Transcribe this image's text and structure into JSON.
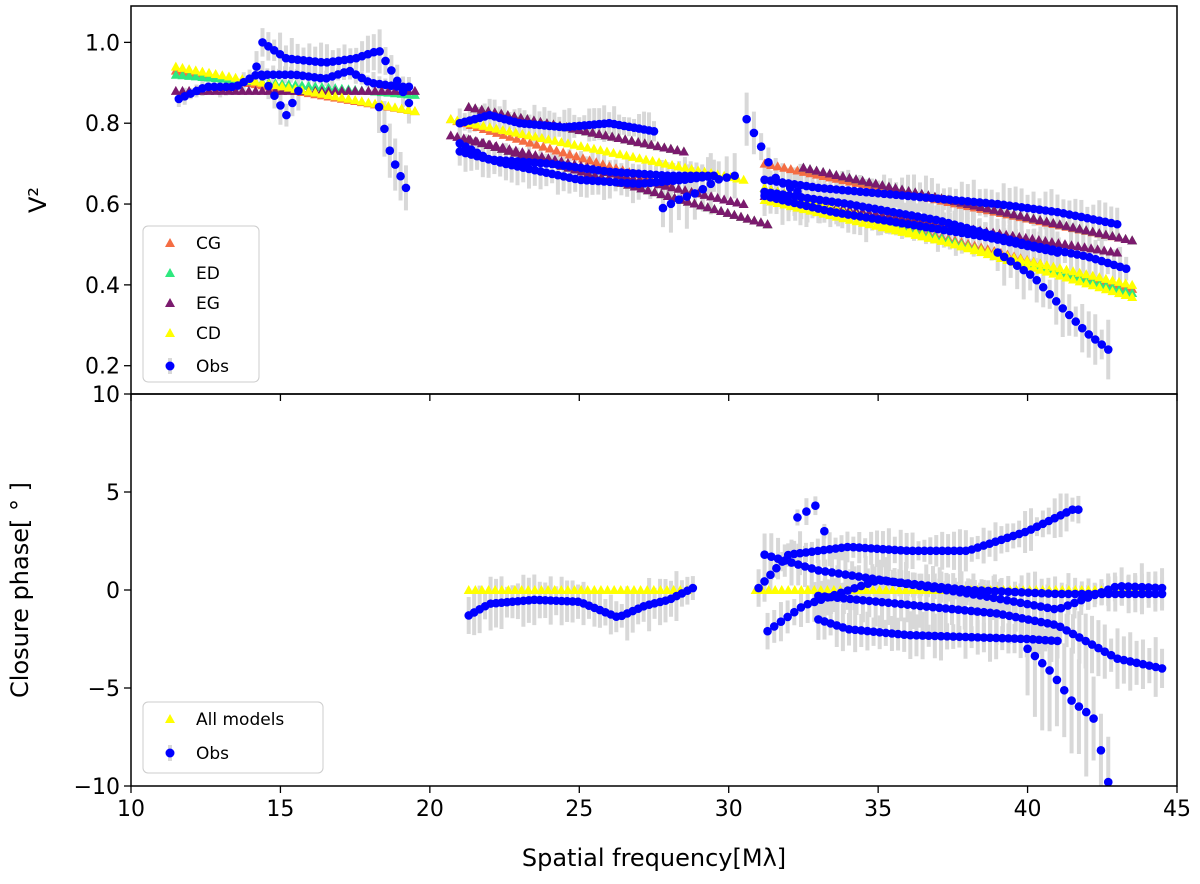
{
  "chart_data": [
    {
      "type": "scatter",
      "panel": "top",
      "xlabel": "",
      "ylabel": "V²",
      "xlim": [
        10,
        45
      ],
      "ylim": [
        0.13,
        1.09
      ],
      "yticks": [
        0.2,
        0.4,
        0.6,
        0.8,
        1.0
      ],
      "ytick_labels": [
        "0.2",
        "0.4",
        "0.6",
        "0.8",
        "1.0"
      ],
      "legend": {
        "placement": "lower-left",
        "entries": [
          "CG",
          "ED",
          "EG",
          "CD",
          "Obs"
        ]
      },
      "model_series": [
        {
          "name": "CG",
          "color": "#f46d43",
          "marker": "triangle",
          "segments": [
            [
              11.5,
              0.93,
              19.5,
              0.83
            ],
            [
              21.3,
              0.84,
              28.5,
              0.73
            ],
            [
              21.3,
              0.76,
              31.3,
              0.55
            ],
            [
              31.2,
              0.7,
              43.5,
              0.51
            ],
            [
              31.2,
              0.64,
              43.5,
              0.39
            ],
            [
              20.7,
              0.81,
              28.0,
              0.65
            ]
          ]
        },
        {
          "name": "ED",
          "color": "#2ee87f",
          "marker": "triangle",
          "segments": [
            [
              11.5,
              0.92,
              19.5,
              0.87
            ],
            [
              21.3,
              0.84,
              28.5,
              0.73
            ],
            [
              21.3,
              0.76,
              31.3,
              0.55
            ],
            [
              32.5,
              0.69,
              43.5,
              0.51
            ],
            [
              31.2,
              0.64,
              43.5,
              0.38
            ]
          ]
        },
        {
          "name": "EG",
          "color": "#7b1a6e",
          "marker": "triangle",
          "segments": [
            [
              11.5,
              0.88,
              19.5,
              0.88
            ],
            [
              21.3,
              0.84,
              28.5,
              0.73
            ],
            [
              21.3,
              0.76,
              31.3,
              0.55
            ],
            [
              32.5,
              0.69,
              43.5,
              0.51
            ],
            [
              31.2,
              0.62,
              43.0,
              0.48
            ],
            [
              20.7,
              0.77,
              30.5,
              0.6
            ]
          ]
        },
        {
          "name": "CD",
          "color": "#ffff00",
          "marker": "triangle",
          "segments": [
            [
              11.5,
              0.94,
              19.5,
              0.83
            ],
            [
              20.7,
              0.81,
              30.5,
              0.66
            ],
            [
              31.2,
              0.64,
              43.5,
              0.37
            ],
            [
              31.2,
              0.61,
              43.5,
              0.4
            ]
          ]
        }
      ],
      "obs": {
        "name": "Obs",
        "color": "#0000ff",
        "errcolor": "#d8d8d8",
        "curves": [
          {
            "x0": 11.6,
            "x1": 19.3,
            "n": 40,
            "kp": [
              [
                11.6,
                0.86
              ],
              [
                12.5,
                0.89
              ],
              [
                13.5,
                0.89
              ],
              [
                14.2,
                0.92
              ],
              [
                15.5,
                0.92
              ],
              [
                16.5,
                0.91
              ],
              [
                17.3,
                0.93
              ],
              [
                18.0,
                0.9
              ],
              [
                19.0,
                0.89
              ]
            ],
            "err": 0.02
          },
          {
            "x0": 14.4,
            "x1": 19.3,
            "n": 26,
            "kp": [
              [
                14.4,
                1.0
              ],
              [
                15.2,
                0.96
              ],
              [
                16.5,
                0.95
              ],
              [
                17.5,
                0.96
              ],
              [
                18.3,
                0.98
              ],
              [
                18.8,
                0.92
              ],
              [
                19.3,
                0.85
              ]
            ],
            "err": 0.04
          },
          {
            "x0": 14.2,
            "x1": 15.6,
            "n": 8,
            "kp": [
              [
                14.2,
                0.94
              ],
              [
                14.7,
                0.88
              ],
              [
                15.2,
                0.82
              ],
              [
                15.6,
                0.88
              ]
            ],
            "err": 0.04
          },
          {
            "x0": 18.3,
            "x1": 19.2,
            "n": 6,
            "kp": [
              [
                18.3,
                0.84
              ],
              [
                18.7,
                0.72
              ],
              [
                19.2,
                0.64
              ]
            ],
            "err": 0.05
          },
          {
            "x0": 21.0,
            "x1": 27.5,
            "n": 40,
            "kp": [
              [
                21.0,
                0.8
              ],
              [
                22.0,
                0.82
              ],
              [
                23.0,
                0.8
              ],
              [
                24.5,
                0.79
              ],
              [
                26.0,
                0.8
              ],
              [
                27.5,
                0.78
              ]
            ],
            "err": 0.035
          },
          {
            "x0": 21.0,
            "x1": 29.5,
            "n": 45,
            "kp": [
              [
                21.0,
                0.75
              ],
              [
                22.0,
                0.71
              ],
              [
                24.0,
                0.7
              ],
              [
                26.0,
                0.68
              ],
              [
                28.0,
                0.67
              ],
              [
                29.5,
                0.67
              ]
            ],
            "err": 0.035
          },
          {
            "x0": 21.0,
            "x1": 29.5,
            "n": 45,
            "kp": [
              [
                21.0,
                0.73
              ],
              [
                22.5,
                0.7
              ],
              [
                25.0,
                0.66
              ],
              [
                27.0,
                0.65
              ],
              [
                28.5,
                0.66
              ],
              [
                29.5,
                0.67
              ]
            ],
            "err": 0.035
          },
          {
            "x0": 27.8,
            "x1": 30.2,
            "n": 10,
            "kp": [
              [
                27.8,
                0.59
              ],
              [
                28.3,
                0.61
              ],
              [
                29.0,
                0.63
              ],
              [
                29.6,
                0.66
              ],
              [
                30.2,
                0.67
              ]
            ],
            "err": 0.06
          },
          {
            "x0": 30.6,
            "x1": 32.3,
            "n": 8,
            "kp": [
              [
                30.6,
                0.81
              ],
              [
                31.1,
                0.74
              ],
              [
                31.6,
                0.66
              ],
              [
                32.3,
                0.63
              ]
            ],
            "err": 0.05
          },
          {
            "x0": 31.2,
            "x1": 43.0,
            "n": 60,
            "kp": [
              [
                31.2,
                0.66
              ],
              [
                33.0,
                0.64
              ],
              [
                36.0,
                0.62
              ],
              [
                39.0,
                0.6
              ],
              [
                41.0,
                0.58
              ],
              [
                43.0,
                0.55
              ]
            ],
            "err": 0.04
          },
          {
            "x0": 31.2,
            "x1": 43.3,
            "n": 60,
            "kp": [
              [
                31.2,
                0.63
              ],
              [
                34.0,
                0.6
              ],
              [
                37.0,
                0.56
              ],
              [
                40.0,
                0.5
              ],
              [
                42.0,
                0.47
              ],
              [
                43.3,
                0.44
              ]
            ],
            "err": 0.045
          },
          {
            "x0": 31.2,
            "x1": 41.0,
            "n": 50,
            "kp": [
              [
                31.2,
                0.62
              ],
              [
                33.5,
                0.58
              ],
              [
                36.0,
                0.55
              ],
              [
                38.5,
                0.52
              ],
              [
                41.0,
                0.48
              ]
            ],
            "err": 0.045
          },
          {
            "x0": 39.0,
            "x1": 42.7,
            "n": 18,
            "kp": [
              [
                39.0,
                0.48
              ],
              [
                40.2,
                0.42
              ],
              [
                41.2,
                0.34
              ],
              [
                42.0,
                0.28
              ],
              [
                42.7,
                0.24
              ]
            ],
            "err": 0.06
          }
        ]
      }
    },
    {
      "type": "scatter",
      "panel": "bottom",
      "xlabel": "Spatial frequency[Mλ]",
      "ylabel": "Closure phase[ ° ]",
      "xlim": [
        10,
        45
      ],
      "ylim": [
        -10,
        10
      ],
      "xticks": [
        10,
        15,
        20,
        25,
        30,
        35,
        40,
        45
      ],
      "xtick_labels": [
        "10",
        "15",
        "20",
        "25",
        "30",
        "35",
        "40",
        "45"
      ],
      "yticks": [
        -10,
        -5,
        0,
        5,
        10
      ],
      "ytick_labels": [
        "−10",
        "−5",
        "0",
        "5",
        "10"
      ],
      "legend": {
        "placement": "lower-left",
        "entries": [
          "All models",
          "Obs"
        ]
      },
      "model_series": [
        {
          "name": "All models",
          "color": "#ffff00",
          "marker": "triangle",
          "segments": [
            [
              21.3,
              0,
              28.6,
              0
            ],
            [
              30.9,
              0,
              44.0,
              0
            ]
          ]
        }
      ],
      "obs": {
        "name": "Obs",
        "color": "#0000ff",
        "errcolor": "#d8d8d8",
        "curves": [
          {
            "x0": 21.3,
            "x1": 28.8,
            "n": 42,
            "kp": [
              [
                21.3,
                -1.3
              ],
              [
                22.0,
                -0.7
              ],
              [
                23.5,
                -0.5
              ],
              [
                25.0,
                -0.6
              ],
              [
                26.3,
                -1.4
              ],
              [
                27.2,
                -0.8
              ],
              [
                28.0,
                -0.5
              ],
              [
                28.8,
                0.1
              ]
            ],
            "err": 1.0
          },
          {
            "x0": 31.0,
            "x1": 41.7,
            "n": 55,
            "kp": [
              [
                31.0,
                0.1
              ],
              [
                32.0,
                1.8
              ],
              [
                34.0,
                2.2
              ],
              [
                36.0,
                2.0
              ],
              [
                38.0,
                2.0
              ],
              [
                40.0,
                3.0
              ],
              [
                41.5,
                4.1
              ]
            ],
            "err": 0.8
          },
          {
            "x0": 31.3,
            "x1": 44.5,
            "n": 60,
            "kp": [
              [
                31.3,
                -2.1
              ],
              [
                32.5,
                -0.8
              ],
              [
                35.0,
                0.5
              ],
              [
                38.0,
                0.0
              ],
              [
                41.0,
                -0.2
              ],
              [
                44.5,
                -0.2
              ]
            ],
            "err": 0.8
          },
          {
            "x0": 31.2,
            "x1": 44.5,
            "n": 60,
            "kp": [
              [
                31.2,
                1.8
              ],
              [
                33.0,
                1.0
              ],
              [
                36.0,
                0.3
              ],
              [
                38.5,
                -0.3
              ],
              [
                41.0,
                -1.0
              ],
              [
                43.0,
                0.2
              ],
              [
                44.5,
                0.1
              ]
            ],
            "err": 0.9
          },
          {
            "x0": 33.0,
            "x1": 44.5,
            "n": 55,
            "kp": [
              [
                33.0,
                -0.3
              ],
              [
                35.0,
                -0.6
              ],
              [
                37.0,
                -0.9
              ],
              [
                39.0,
                -1.2
              ],
              [
                41.0,
                -1.8
              ],
              [
                43.0,
                -3.5
              ],
              [
                44.5,
                -4.0
              ]
            ],
            "err": 1.2
          },
          {
            "x0": 33.0,
            "x1": 41.0,
            "n": 40,
            "kp": [
              [
                33.0,
                -1.5
              ],
              [
                34.0,
                -2.0
              ],
              [
                36.0,
                -2.3
              ],
              [
                38.0,
                -2.4
              ],
              [
                40.0,
                -2.5
              ],
              [
                41.0,
                -2.6
              ]
            ],
            "err": 0.9
          },
          {
            "x0": 40.0,
            "x1": 42.7,
            "n": 12,
            "kp": [
              [
                40.0,
                -3.0
              ],
              [
                40.8,
                -4.2
              ],
              [
                41.5,
                -5.7
              ],
              [
                42.2,
                -6.5
              ],
              [
                42.7,
                -9.8
              ]
            ],
            "err": 3.0
          },
          {
            "x0": 32.3,
            "x1": 33.2,
            "n": 4,
            "kp": [
              [
                32.3,
                3.7
              ],
              [
                33.0,
                4.4
              ],
              [
                33.2,
                3.0
              ]
            ],
            "err": 0.5
          }
        ]
      }
    }
  ]
}
